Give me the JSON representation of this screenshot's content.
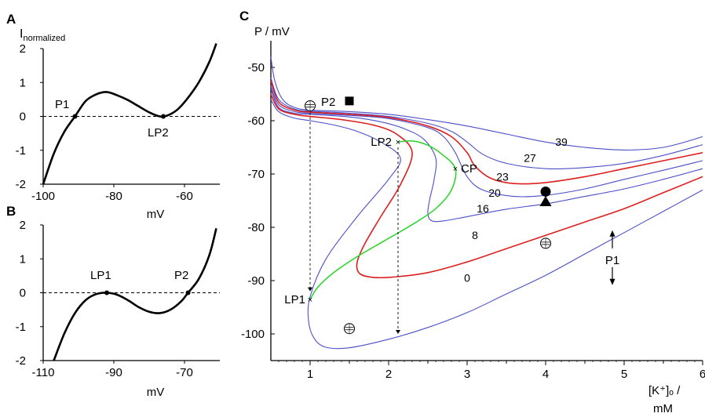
{
  "panels": {
    "A": {
      "letter": "A"
    },
    "B": {
      "letter": "B"
    },
    "C": {
      "letter": "C"
    }
  },
  "chart_data": [
    {
      "panel": "A",
      "type": "line",
      "ylabel_main": "I",
      "ylabel_sub": "normalized",
      "xlabel": "mV",
      "xlim": [
        -100,
        -50
      ],
      "ylim": [
        -2,
        2
      ],
      "x_ticks": [
        -100,
        -80,
        -60
      ],
      "y_ticks": [
        2,
        1,
        0,
        -1,
        -2
      ],
      "zero_line": "dashed",
      "series": [
        {
          "x": [
            -100,
            -97,
            -94,
            -91,
            -88,
            -85,
            -82,
            -79,
            -76,
            -73,
            -70,
            -67,
            -65,
            -62,
            -59,
            -56,
            -53,
            -51
          ],
          "y": [
            -2.0,
            -1.1,
            -0.45,
            0.0,
            0.45,
            0.65,
            0.72,
            0.62,
            0.48,
            0.3,
            0.12,
            0.0,
            0.02,
            0.2,
            0.55,
            1.0,
            1.6,
            2.15
          ]
        }
      ],
      "points": [
        {
          "label": "P1",
          "x": -91,
          "y": 0
        },
        {
          "label": "LP2",
          "x": -66,
          "y": 0
        }
      ]
    },
    {
      "panel": "B",
      "type": "line",
      "xlabel": "mV",
      "xlim": [
        -110,
        -60
      ],
      "ylim": [
        -2,
        2
      ],
      "x_ticks": [
        -110,
        -90,
        -70
      ],
      "y_ticks": [
        2,
        1,
        0,
        -1,
        -2
      ],
      "zero_line": "dashed",
      "series": [
        {
          "x": [
            -107,
            -104,
            -101,
            -98,
            -95,
            -92,
            -89,
            -86,
            -83,
            -80,
            -77,
            -74,
            -71,
            -69,
            -66,
            -63,
            -61
          ],
          "y": [
            -2.0,
            -1.2,
            -0.6,
            -0.22,
            -0.04,
            0.0,
            -0.06,
            -0.22,
            -0.42,
            -0.56,
            -0.6,
            -0.5,
            -0.26,
            0.0,
            0.4,
            1.1,
            1.9
          ]
        }
      ],
      "points": [
        {
          "label": "LP1",
          "x": -92,
          "y": 0
        },
        {
          "label": "P2",
          "x": -69,
          "y": 0
        }
      ]
    },
    {
      "panel": "C",
      "type": "line",
      "ylabel": "P / mV",
      "xlabel_line1": "[K⁺]ₒ /",
      "xlabel_line2": "mM",
      "xlim": [
        0.5,
        6
      ],
      "ylim": [
        -105,
        -45
      ],
      "x_ticks": [
        1,
        2,
        3,
        4,
        5,
        6
      ],
      "y_ticks": [
        -50,
        -60,
        -70,
        -80,
        -90,
        -100
      ],
      "colors": {
        "blue": "#4a4fc8",
        "red": "#dd1f1f",
        "green": "#33d433"
      },
      "series": [
        {
          "name": "39",
          "color": "blue",
          "x": [
            0.5,
            0.55,
            0.65,
            0.8,
            1.0,
            1.5,
            2.0,
            2.5,
            3.0,
            3.5,
            4.0,
            4.5,
            5.0,
            5.5,
            6.0
          ],
          "y": [
            -48,
            -52.5,
            -56,
            -57.5,
            -58,
            -58.3,
            -58.8,
            -59.8,
            -61,
            -62.5,
            -64,
            -65,
            -65.5,
            -65,
            -63
          ]
        },
        {
          "name": "27",
          "color": "blue",
          "x": [
            0.5,
            0.6,
            0.8,
            1.0,
            1.5,
            2.0,
            2.5,
            2.8,
            3.0,
            3.2,
            3.5,
            4.0,
            4.5,
            5.0,
            5.5,
            6.0
          ],
          "y": [
            -52,
            -56,
            -57.8,
            -58.2,
            -58.6,
            -59.2,
            -60.5,
            -62,
            -64,
            -66.3,
            -68,
            -69,
            -68.8,
            -68,
            -66.5,
            -64.5
          ]
        },
        {
          "name": "23",
          "color": "red",
          "x": [
            0.5,
            0.6,
            0.8,
            1.0,
            1.5,
            2.0,
            2.5,
            2.8,
            3.0,
            3.1,
            3.3,
            3.6,
            4.0,
            4.5,
            5.0,
            5.5,
            6.0
          ],
          "y": [
            -52.5,
            -56.5,
            -58,
            -58.4,
            -58.8,
            -59.4,
            -61,
            -63,
            -66,
            -68.5,
            -70.8,
            -71.8,
            -71.6,
            -70.5,
            -69,
            -67.5,
            -66
          ]
        },
        {
          "name": "20",
          "color": "blue",
          "x": [
            0.5,
            0.6,
            0.8,
            1.0,
            1.5,
            2.0,
            2.5,
            2.7,
            2.85,
            3.0,
            3.2,
            3.6,
            4.0,
            4.5,
            5.0,
            5.5,
            6.0
          ],
          "y": [
            -53.5,
            -57,
            -58.3,
            -58.6,
            -59,
            -59.6,
            -61.3,
            -63,
            -66,
            -70.5,
            -73,
            -74.2,
            -74,
            -72.8,
            -71,
            -69.3,
            -67.5
          ]
        },
        {
          "name": "16",
          "color": "blue",
          "x": [
            0.5,
            0.6,
            0.8,
            1.0,
            1.5,
            1.9,
            2.2,
            2.45,
            2.6,
            2.58,
            2.52,
            2.5,
            2.55,
            2.7,
            3.0,
            3.5,
            4.0,
            4.5,
            5.0,
            5.5,
            6.0
          ],
          "y": [
            -54,
            -57.5,
            -58.6,
            -58.8,
            -59.3,
            -60.2,
            -61.5,
            -63.5,
            -67,
            -71,
            -75,
            -77.5,
            -78.8,
            -78.8,
            -78,
            -76.6,
            -75.6,
            -74.2,
            -72.8,
            -71,
            -69
          ]
        },
        {
          "name": "8",
          "color": "red",
          "x": [
            0.5,
            0.6,
            0.8,
            1.0,
            1.4,
            1.8,
            2.1,
            2.3,
            2.15,
            1.9,
            1.7,
            1.6,
            1.62,
            1.75,
            2.0,
            2.5,
            3.0,
            3.5,
            4.0,
            4.5,
            5.0,
            5.5,
            6.0
          ],
          "y": [
            -55,
            -57.8,
            -58.8,
            -59.2,
            -59.8,
            -60.8,
            -62.5,
            -66,
            -72,
            -78,
            -83,
            -86.5,
            -88.5,
            -89.3,
            -89.4,
            -88.5,
            -86.5,
            -84,
            -81.5,
            -79,
            -76.5,
            -73.5,
            -70.5
          ]
        },
        {
          "name": "0",
          "color": "blue",
          "x": [
            0.5,
            0.6,
            0.8,
            1.0,
            1.3,
            1.6,
            1.9,
            2.15,
            2.0,
            1.6,
            1.2,
            1.0,
            0.98,
            1.05,
            1.2,
            1.5,
            2.0,
            2.5,
            3.0,
            3.5,
            4.0,
            4.5,
            5.0,
            5.5,
            6.0
          ],
          "y": [
            -56,
            -58.3,
            -59.5,
            -60,
            -60.8,
            -62,
            -64,
            -67,
            -71,
            -78,
            -86,
            -93,
            -97.5,
            -100.8,
            -102.5,
            -102.6,
            -101,
            -98.8,
            -96,
            -92.5,
            -89,
            -85,
            -81,
            -77,
            -73
          ]
        },
        {
          "name": "",
          "color": "green",
          "x": [
            2.12,
            2.3,
            2.5,
            2.68,
            2.85,
            2.8,
            2.6,
            2.3,
            1.95,
            1.6,
            1.3,
            1.1,
            1.0
          ],
          "y": [
            -64,
            -63.8,
            -64.6,
            -66.3,
            -69,
            -73,
            -76.5,
            -79.5,
            -82.5,
            -85.5,
            -88.5,
            -91.2,
            -93.5
          ]
        }
      ],
      "curve_labels": [
        {
          "text": "39",
          "x": 4.2,
          "y": -64
        },
        {
          "text": "27",
          "x": 3.8,
          "y": -67
        },
        {
          "text": "23",
          "x": 3.45,
          "y": -70.5
        },
        {
          "text": "20",
          "x": 3.35,
          "y": -73.5
        },
        {
          "text": "16",
          "x": 3.2,
          "y": -76.5
        },
        {
          "text": "8",
          "x": 3.1,
          "y": -81.5
        },
        {
          "text": "0",
          "x": 3.0,
          "y": -89.5
        }
      ],
      "points": [
        {
          "label": "LP2",
          "x": 2.12,
          "y": -64
        },
        {
          "label": "CP",
          "x": 2.85,
          "y": -69
        },
        {
          "label": "LP1",
          "x": 1.0,
          "y": -93.5
        },
        {
          "label": "P2",
          "x": 1.0,
          "y": -57.2
        },
        {
          "label": "P1",
          "x": 4.85,
          "y": -86
        }
      ],
      "dashed_arrows": [
        {
          "x": 1.0,
          "from": -58.5,
          "to": -92
        },
        {
          "x": 2.12,
          "from": -65,
          "to": -100
        }
      ],
      "markers": [
        {
          "shape": "open-circle-hatched",
          "x": 1.0,
          "y": -57.2
        },
        {
          "shape": "filled-square",
          "x": 1.5,
          "y": -56.3
        },
        {
          "shape": "open-circle-hatched",
          "x": 1.5,
          "y": -99
        },
        {
          "shape": "filled-circle",
          "x": 4.0,
          "y": -73.3
        },
        {
          "shape": "filled-triangle",
          "x": 4.0,
          "y": -75
        },
        {
          "shape": "open-circle-hatched",
          "x": 4.0,
          "y": -83
        }
      ]
    }
  ]
}
